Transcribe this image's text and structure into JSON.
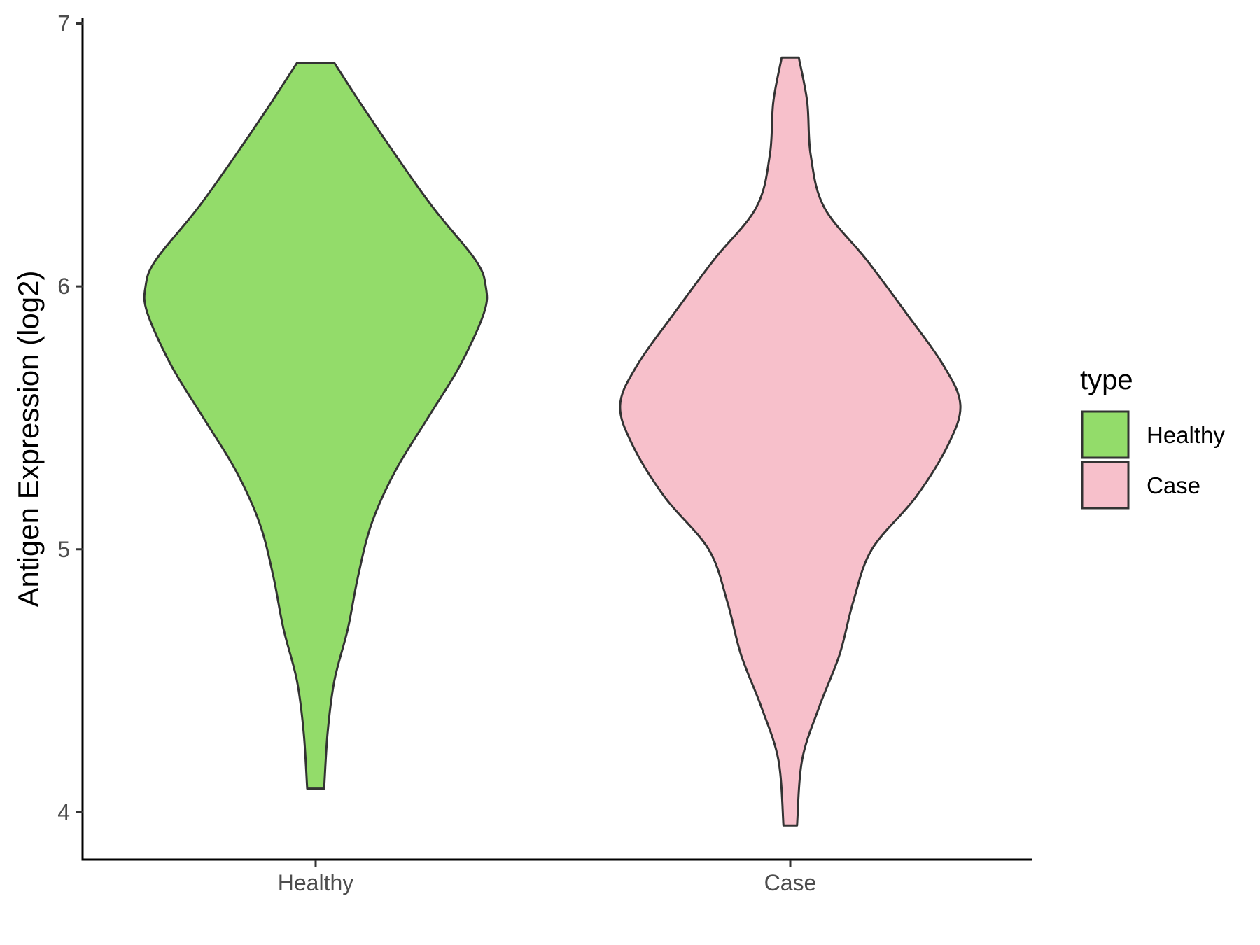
{
  "chart_data": {
    "type": "violin",
    "title": "",
    "xlabel": "",
    "ylabel": "Antigen Expression (log2)",
    "ylim": [
      3.82,
      7.02
    ],
    "yticks": [
      4,
      5,
      6,
      7
    ],
    "categories": [
      "Healthy",
      "Case"
    ],
    "grid": false,
    "legend": {
      "title": "type",
      "placement": "right",
      "entries": [
        {
          "label": "Healthy",
          "color": "#93dc6a"
        },
        {
          "label": "Case",
          "color": "#f7c0cb"
        }
      ]
    },
    "series": [
      {
        "category": "Healthy",
        "color": "#93dc6a",
        "min": 4.09,
        "max": 6.85,
        "density_profile": [
          {
            "y": 4.09,
            "w": 0.05
          },
          {
            "y": 4.3,
            "w": 0.07
          },
          {
            "y": 4.5,
            "w": 0.11
          },
          {
            "y": 4.7,
            "w": 0.19
          },
          {
            "y": 4.9,
            "w": 0.25
          },
          {
            "y": 5.1,
            "w": 0.33
          },
          {
            "y": 5.3,
            "w": 0.47
          },
          {
            "y": 5.5,
            "w": 0.66
          },
          {
            "y": 5.7,
            "w": 0.85
          },
          {
            "y": 5.9,
            "w": 0.99
          },
          {
            "y": 6.0,
            "w": 1.0
          },
          {
            "y": 6.1,
            "w": 0.94
          },
          {
            "y": 6.3,
            "w": 0.69
          },
          {
            "y": 6.5,
            "w": 0.47
          },
          {
            "y": 6.7,
            "w": 0.26
          },
          {
            "y": 6.85,
            "w": 0.11
          }
        ]
      },
      {
        "category": "Case",
        "color": "#f7c0cb",
        "min": 3.95,
        "max": 6.87,
        "density_profile": [
          {
            "y": 3.95,
            "w": 0.04
          },
          {
            "y": 4.2,
            "w": 0.07
          },
          {
            "y": 4.4,
            "w": 0.17
          },
          {
            "y": 4.6,
            "w": 0.29
          },
          {
            "y": 4.8,
            "w": 0.37
          },
          {
            "y": 5.0,
            "w": 0.48
          },
          {
            "y": 5.2,
            "w": 0.74
          },
          {
            "y": 5.4,
            "w": 0.93
          },
          {
            "y": 5.55,
            "w": 1.0
          },
          {
            "y": 5.7,
            "w": 0.9
          },
          {
            "y": 5.9,
            "w": 0.68
          },
          {
            "y": 6.1,
            "w": 0.45
          },
          {
            "y": 6.3,
            "w": 0.2
          },
          {
            "y": 6.5,
            "w": 0.12
          },
          {
            "y": 6.7,
            "w": 0.1
          },
          {
            "y": 6.87,
            "w": 0.05
          }
        ]
      }
    ]
  }
}
